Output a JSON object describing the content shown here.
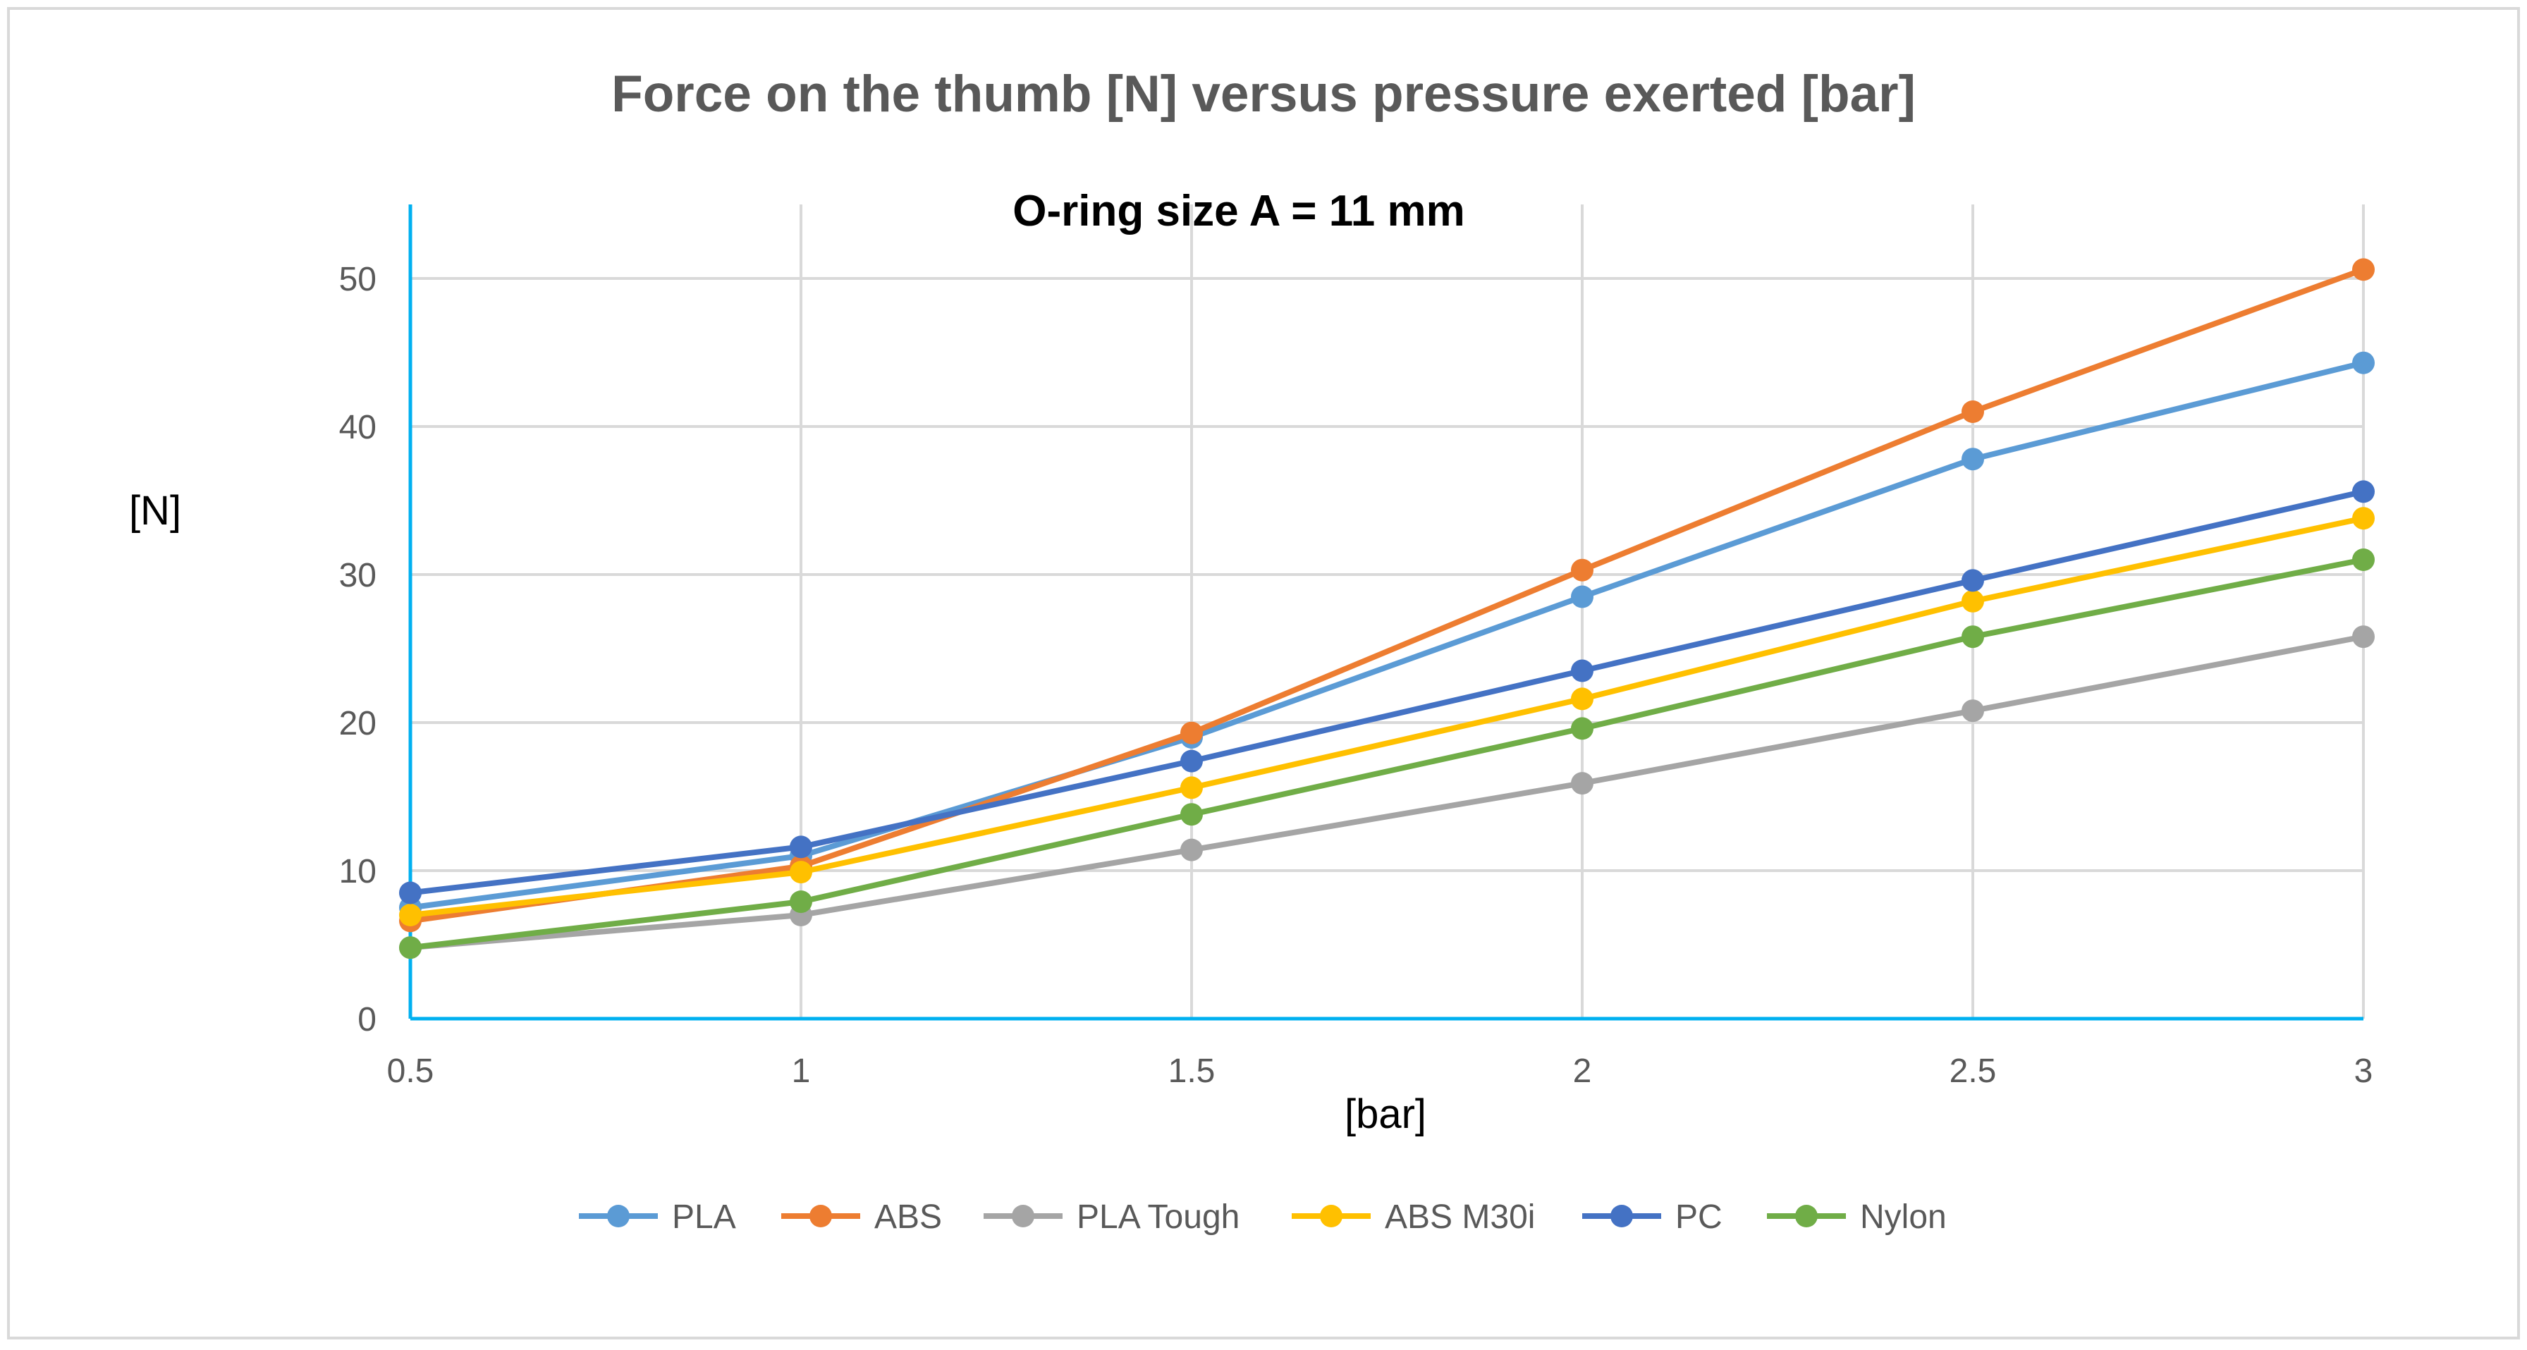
{
  "chart_data": {
    "type": "line",
    "title": "Force on the thumb [N] versus pressure exerted [bar]",
    "subtitle": "O-ring size A = 11 mm",
    "xlabel": "[bar]",
    "ylabel": "[N]",
    "x": [
      0.5,
      1,
      1.5,
      2,
      2.5,
      3
    ],
    "x_tick_labels": [
      "0.5",
      "1",
      "1.5",
      "2",
      "2.5",
      "3"
    ],
    "y_ticks": [
      0,
      10,
      20,
      30,
      40,
      50
    ],
    "y_tick_labels": [
      "0",
      "10",
      "20",
      "30",
      "40",
      "50"
    ],
    "xlim": [
      0.5,
      3
    ],
    "ylim": [
      0,
      55
    ],
    "grid": true,
    "legend_position": "bottom",
    "series": [
      {
        "name": "PLA",
        "color": "#5B9BD5",
        "values": [
          7.5,
          11.0,
          19.0,
          28.5,
          37.8,
          44.3
        ]
      },
      {
        "name": "ABS",
        "color": "#ED7D31",
        "values": [
          6.6,
          10.3,
          19.3,
          30.3,
          41.0,
          50.6
        ]
      },
      {
        "name": "PLA Tough",
        "color": "#A5A5A5",
        "values": [
          4.8,
          7.0,
          11.4,
          15.9,
          20.8,
          25.8
        ]
      },
      {
        "name": "ABS M30i",
        "color": "#FFC000",
        "values": [
          7.0,
          9.9,
          15.6,
          21.6,
          28.2,
          33.8
        ]
      },
      {
        "name": "PC",
        "color": "#4472C4",
        "values": [
          8.5,
          11.6,
          17.4,
          23.5,
          29.6,
          35.6
        ]
      },
      {
        "name": "Nylon",
        "color": "#70AD47",
        "values": [
          4.8,
          7.9,
          13.8,
          19.6,
          25.8,
          31.0
        ]
      }
    ]
  }
}
